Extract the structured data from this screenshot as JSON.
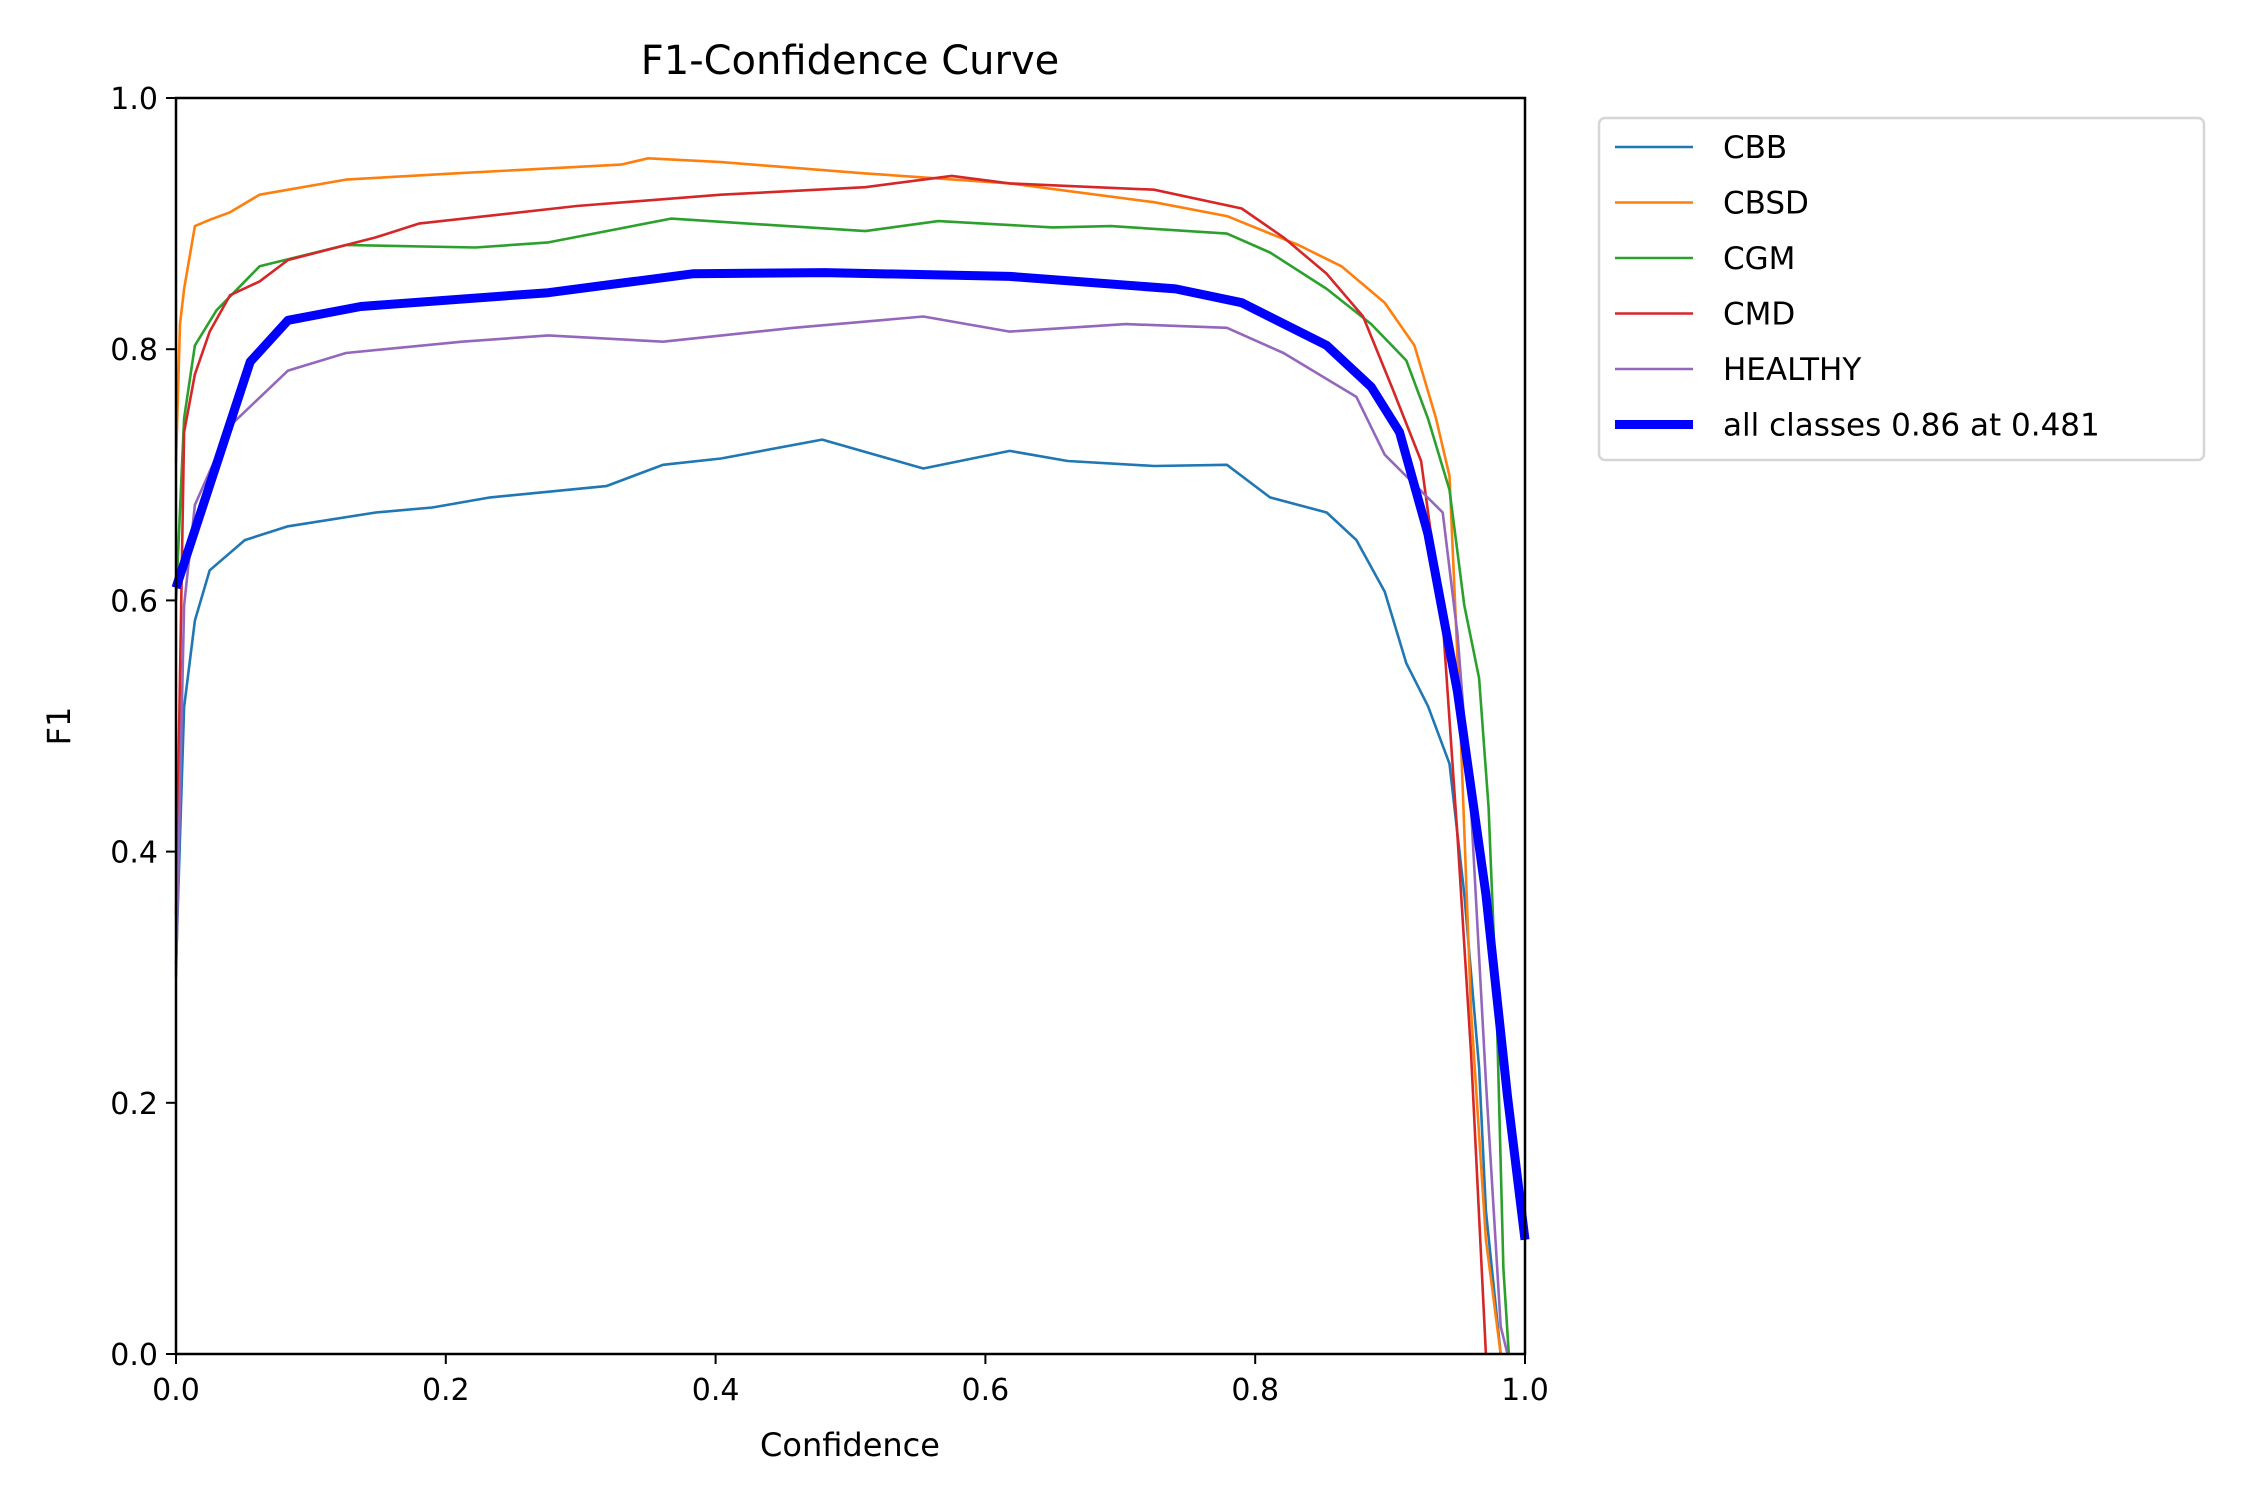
{
  "chart_data": {
    "type": "line",
    "title": "F1-Confidence Curve",
    "xlabel": "Confidence",
    "ylabel": "F1",
    "xlim": [
      0,
      1
    ],
    "ylim": [
      0,
      1
    ],
    "xticks": [
      "0.0",
      "0.2",
      "0.4",
      "0.6",
      "0.8",
      "1.0"
    ],
    "yticks": [
      "0.0",
      "0.2",
      "0.4",
      "0.6",
      "0.8",
      "1.0"
    ],
    "grid": false,
    "legend_position": "outside-top-right",
    "series": [
      {
        "name": "CBB",
        "color": "#1f77b4",
        "width": "thin",
        "points": [
          [
            0,
            0.31
          ],
          [
            0.006,
            0.515
          ],
          [
            0.014,
            0.584
          ],
          [
            0.025,
            0.624
          ],
          [
            0.051,
            0.648
          ],
          [
            0.083,
            0.659
          ],
          [
            0.148,
            0.67
          ],
          [
            0.19,
            0.674
          ],
          [
            0.233,
            0.682
          ],
          [
            0.319,
            0.691
          ],
          [
            0.361,
            0.708
          ],
          [
            0.404,
            0.713
          ],
          [
            0.479,
            0.728
          ],
          [
            0.554,
            0.705
          ],
          [
            0.618,
            0.719
          ],
          [
            0.661,
            0.711
          ],
          [
            0.725,
            0.707
          ],
          [
            0.779,
            0.708
          ],
          [
            0.811,
            0.682
          ],
          [
            0.853,
            0.67
          ],
          [
            0.875,
            0.648
          ],
          [
            0.896,
            0.607
          ],
          [
            0.912,
            0.55
          ],
          [
            0.928,
            0.516
          ],
          [
            0.944,
            0.47
          ],
          [
            0.955,
            0.366
          ],
          [
            0.966,
            0.228
          ],
          [
            0.971,
            0.114
          ],
          [
            0.982,
            0
          ]
        ]
      },
      {
        "name": "CBSD",
        "color": "#ff7f0e",
        "width": "thin",
        "points": [
          [
            0,
            0.71
          ],
          [
            0.003,
            0.82
          ],
          [
            0.006,
            0.848
          ],
          [
            0.014,
            0.898
          ],
          [
            0.025,
            0.903
          ],
          [
            0.04,
            0.909
          ],
          [
            0.062,
            0.923
          ],
          [
            0.126,
            0.935
          ],
          [
            0.206,
            0.94
          ],
          [
            0.33,
            0.947
          ],
          [
            0.35,
            0.952
          ],
          [
            0.404,
            0.949
          ],
          [
            0.511,
            0.94
          ],
          [
            0.618,
            0.932
          ],
          [
            0.725,
            0.917
          ],
          [
            0.779,
            0.906
          ],
          [
            0.832,
            0.883
          ],
          [
            0.864,
            0.866
          ],
          [
            0.896,
            0.837
          ],
          [
            0.918,
            0.803
          ],
          [
            0.934,
            0.745
          ],
          [
            0.944,
            0.699
          ],
          [
            0.952,
            0.504
          ],
          [
            0.96,
            0.274
          ],
          [
            0.971,
            0.091
          ],
          [
            0.982,
            0
          ]
        ]
      },
      {
        "name": "CGM",
        "color": "#2ca02c",
        "width": "thin",
        "points": [
          [
            0,
            0.6
          ],
          [
            0.006,
            0.745
          ],
          [
            0.014,
            0.803
          ],
          [
            0.03,
            0.831
          ],
          [
            0.062,
            0.866
          ],
          [
            0.126,
            0.883
          ],
          [
            0.222,
            0.881
          ],
          [
            0.276,
            0.885
          ],
          [
            0.367,
            0.904
          ],
          [
            0.511,
            0.894
          ],
          [
            0.565,
            0.902
          ],
          [
            0.65,
            0.897
          ],
          [
            0.693,
            0.898
          ],
          [
            0.779,
            0.892
          ],
          [
            0.811,
            0.877
          ],
          [
            0.853,
            0.848
          ],
          [
            0.886,
            0.82
          ],
          [
            0.912,
            0.791
          ],
          [
            0.928,
            0.745
          ],
          [
            0.944,
            0.688
          ],
          [
            0.955,
            0.596
          ],
          [
            0.966,
            0.538
          ],
          [
            0.973,
            0.435
          ],
          [
            0.979,
            0.274
          ],
          [
            0.984,
            0.068
          ],
          [
            0.988,
            0
          ]
        ]
      },
      {
        "name": "CMD",
        "color": "#d62728",
        "width": "thin",
        "points": [
          [
            0,
            0.35
          ],
          [
            0.006,
            0.734
          ],
          [
            0.014,
            0.78
          ],
          [
            0.025,
            0.814
          ],
          [
            0.04,
            0.843
          ],
          [
            0.062,
            0.854
          ],
          [
            0.083,
            0.871
          ],
          [
            0.148,
            0.889
          ],
          [
            0.18,
            0.9
          ],
          [
            0.297,
            0.914
          ],
          [
            0.404,
            0.923
          ],
          [
            0.511,
            0.929
          ],
          [
            0.575,
            0.938
          ],
          [
            0.618,
            0.932
          ],
          [
            0.725,
            0.927
          ],
          [
            0.79,
            0.912
          ],
          [
            0.821,
            0.889
          ],
          [
            0.853,
            0.86
          ],
          [
            0.88,
            0.826
          ],
          [
            0.902,
            0.768
          ],
          [
            0.923,
            0.711
          ],
          [
            0.939,
            0.584
          ],
          [
            0.95,
            0.412
          ],
          [
            0.96,
            0.24
          ],
          [
            0.971,
            0
          ]
        ]
      },
      {
        "name": "HEALTHY",
        "color": "#9467bd",
        "width": "thin",
        "points": [
          [
            0,
            0.3
          ],
          [
            0.006,
            0.596
          ],
          [
            0.014,
            0.676
          ],
          [
            0.04,
            0.739
          ],
          [
            0.083,
            0.783
          ],
          [
            0.126,
            0.797
          ],
          [
            0.212,
            0.806
          ],
          [
            0.276,
            0.811
          ],
          [
            0.361,
            0.806
          ],
          [
            0.458,
            0.817
          ],
          [
            0.554,
            0.826
          ],
          [
            0.618,
            0.814
          ],
          [
            0.704,
            0.82
          ],
          [
            0.779,
            0.817
          ],
          [
            0.821,
            0.797
          ],
          [
            0.875,
            0.762
          ],
          [
            0.896,
            0.716
          ],
          [
            0.939,
            0.67
          ],
          [
            0.95,
            0.573
          ],
          [
            0.96,
            0.435
          ],
          [
            0.971,
            0.217
          ],
          [
            0.982,
            0.022
          ],
          [
            0.987,
            0
          ]
        ]
      },
      {
        "name": "all classes 0.86 at 0.481",
        "color": "#0000ff",
        "width": "thick",
        "points": [
          [
            0,
            0.61
          ],
          [
            0.055,
            0.79
          ],
          [
            0.083,
            0.823
          ],
          [
            0.137,
            0.834
          ],
          [
            0.276,
            0.845
          ],
          [
            0.383,
            0.86
          ],
          [
            0.481,
            0.861
          ],
          [
            0.618,
            0.858
          ],
          [
            0.741,
            0.848
          ],
          [
            0.79,
            0.837
          ],
          [
            0.853,
            0.803
          ],
          [
            0.886,
            0.77
          ],
          [
            0.907,
            0.734
          ],
          [
            0.928,
            0.653
          ],
          [
            0.95,
            0.527
          ],
          [
            0.971,
            0.366
          ],
          [
            0.987,
            0.205
          ],
          [
            1.0,
            0.091
          ]
        ]
      }
    ]
  }
}
